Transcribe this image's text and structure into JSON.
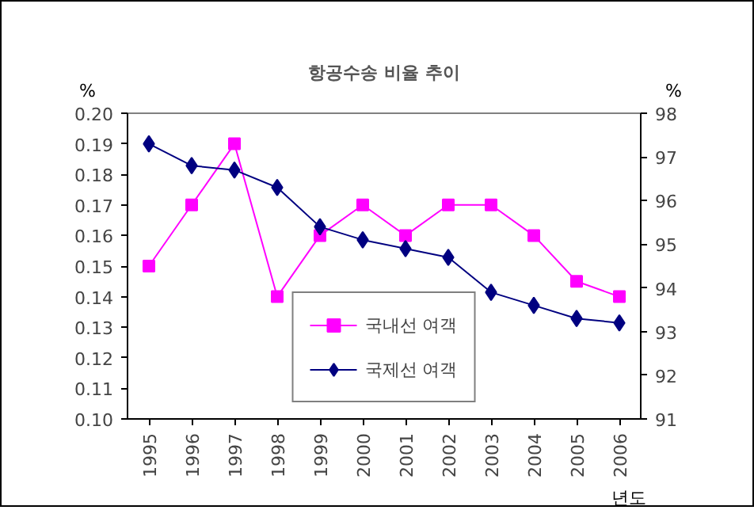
{
  "chart_data": {
    "type": "line",
    "title": "항공수송 비율 추이",
    "xlabel": "년도",
    "ylabel": "%",
    "y2label": "%",
    "categories": [
      "1995",
      "1996",
      "1997",
      "1998",
      "1999",
      "2000",
      "2001",
      "2002",
      "2003",
      "2004",
      "2005",
      "2006"
    ],
    "series": [
      {
        "name": "국내선 여객",
        "color": "#ff00ff",
        "marker": "square",
        "values": [
          0.15,
          0.17,
          0.19,
          0.14,
          0.16,
          0.17,
          0.16,
          0.17,
          0.17,
          0.16,
          0.145,
          0.14
        ]
      },
      {
        "name": "국제선 여객",
        "color": "#000080",
        "marker": "diamond",
        "axis": "y2",
        "values": [
          97.3,
          96.8,
          96.7,
          96.3,
          95.4,
          95.1,
          94.9,
          94.7,
          93.9,
          93.6,
          93.3,
          93.2
        ]
      }
    ],
    "ylim": [
      0.1,
      0.2
    ],
    "yticks": [
      {
        "value": 0.1,
        "label": "0.10"
      },
      {
        "value": 0.11,
        "label": "0.11"
      },
      {
        "value": 0.12,
        "label": "0.12"
      },
      {
        "value": 0.13,
        "label": "0.13"
      },
      {
        "value": 0.14,
        "label": "0.14"
      },
      {
        "value": 0.15,
        "label": "0.15"
      },
      {
        "value": 0.16,
        "label": "0.16"
      },
      {
        "value": 0.17,
        "label": "0.17"
      },
      {
        "value": 0.18,
        "label": "0.18"
      },
      {
        "value": 0.19,
        "label": "0.19"
      },
      {
        "value": 0.2,
        "label": "0.20"
      }
    ],
    "y2lim": [
      91,
      98
    ],
    "y2ticks": [
      91,
      92,
      93,
      94,
      95,
      96,
      97,
      98
    ],
    "grid": false,
    "legend": "bottom",
    "line_style": "solid"
  }
}
